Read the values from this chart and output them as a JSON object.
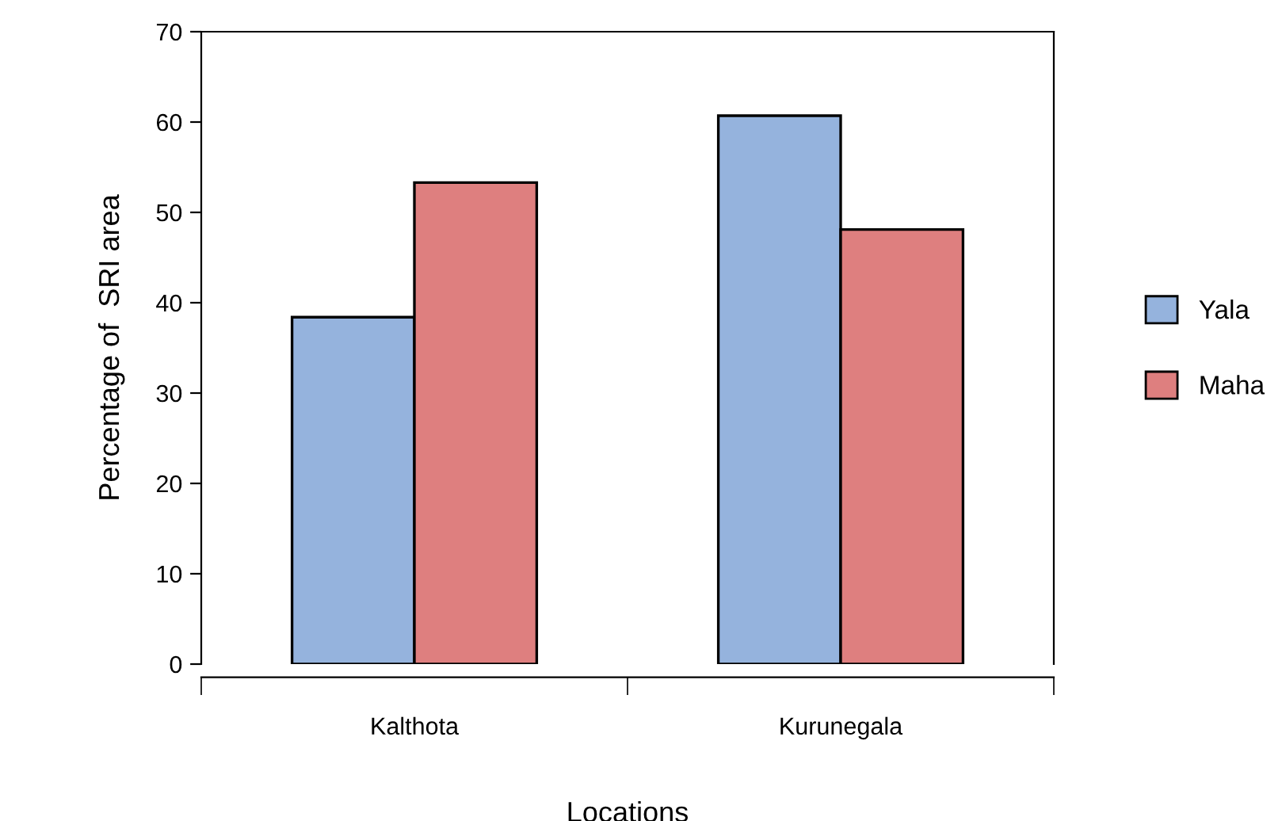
{
  "chart_data": {
    "type": "bar",
    "xlabel": "Locations",
    "ylabel": "Percentage of  SRI area",
    "categories": [
      "Kalthota",
      "Kurunegala"
    ],
    "series": [
      {
        "name": "Yala",
        "color": "#95b3dd",
        "values": [
          38.4,
          60.7
        ]
      },
      {
        "name": "Maha",
        "color": "#de7f7f",
        "values": [
          53.3,
          48.1
        ]
      }
    ],
    "ylim": [
      0,
      70
    ],
    "yticks": [
      0,
      10,
      20,
      30,
      40,
      50,
      60,
      70
    ],
    "grid": false,
    "legend": "right"
  }
}
